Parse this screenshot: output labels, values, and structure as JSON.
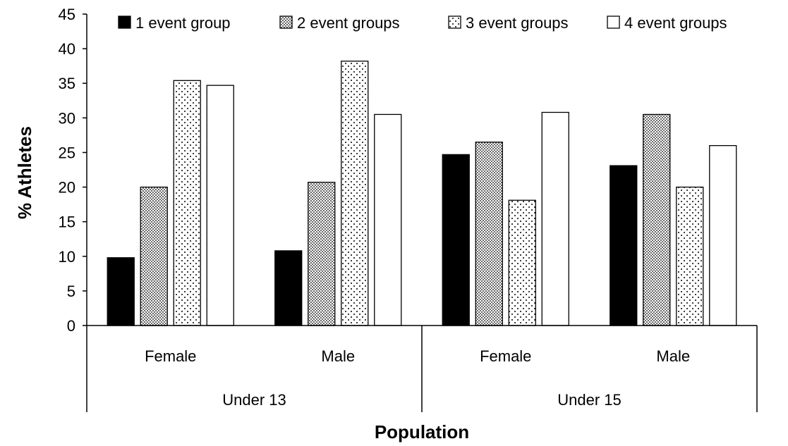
{
  "chart_data": {
    "type": "bar",
    "title": "",
    "xlabel": "Population",
    "ylabel": "% Athletes",
    "ylim": [
      0,
      45
    ],
    "y_ticks": [
      0,
      5,
      10,
      15,
      20,
      25,
      30,
      35,
      40,
      45
    ],
    "grid": false,
    "legend_position": "top",
    "categories": [
      "Female",
      "Male",
      "Female",
      "Male"
    ],
    "category_groups": [
      {
        "label": "Under 13",
        "categories": [
          "Female",
          "Male"
        ]
      },
      {
        "label": "Under 15",
        "categories": [
          "Female",
          "Male"
        ]
      }
    ],
    "series": [
      {
        "name": "1 event group",
        "pattern": "solid-black",
        "values": [
          9.8,
          10.8,
          24.7,
          23.1
        ]
      },
      {
        "name": "2 event groups",
        "pattern": "dense-dots",
        "values": [
          20.0,
          20.7,
          26.5,
          30.5
        ]
      },
      {
        "name": "3 event groups",
        "pattern": "sparse-dots",
        "values": [
          35.4,
          38.2,
          18.1,
          20.0
        ]
      },
      {
        "name": "4 event groups",
        "pattern": "white",
        "values": [
          34.7,
          30.5,
          30.8,
          26.0
        ]
      }
    ]
  }
}
